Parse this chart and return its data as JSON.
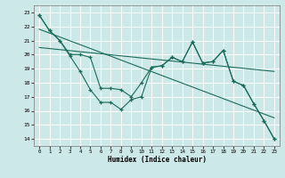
{
  "xlabel": "Humidex (Indice chaleur)",
  "bg_color": "#cce8e8",
  "grid_color": "#ffffff",
  "line_color": "#1a6b5a",
  "xlim": [
    -0.5,
    23.5
  ],
  "ylim": [
    13.5,
    23.5
  ],
  "xticks": [
    0,
    1,
    2,
    3,
    4,
    5,
    6,
    7,
    8,
    9,
    10,
    11,
    12,
    13,
    14,
    15,
    16,
    17,
    18,
    19,
    20,
    21,
    22,
    23
  ],
  "yticks": [
    14,
    15,
    16,
    17,
    18,
    19,
    20,
    21,
    22,
    23
  ],
  "series1_x": [
    0,
    1,
    2,
    3,
    4,
    5,
    6,
    7,
    8,
    9,
    10,
    11,
    12,
    13,
    14,
    15,
    16,
    17,
    18,
    19,
    20,
    21,
    22,
    23
  ],
  "series1_y": [
    22.8,
    21.7,
    21.0,
    19.9,
    18.8,
    17.5,
    16.6,
    16.6,
    16.1,
    16.8,
    17.0,
    19.1,
    19.2,
    19.8,
    19.5,
    20.9,
    19.4,
    19.5,
    20.3,
    18.1,
    17.8,
    16.5,
    15.3,
    14.0
  ],
  "series2_x": [
    0,
    1,
    2,
    3,
    4,
    5,
    6,
    7,
    8,
    9,
    10,
    11,
    12,
    13,
    14,
    15,
    16,
    17,
    18,
    19,
    20,
    21,
    22,
    23
  ],
  "series2_y": [
    22.8,
    21.7,
    21.0,
    20.0,
    20.0,
    19.8,
    17.6,
    17.6,
    17.5,
    17.0,
    18.0,
    19.1,
    19.2,
    19.8,
    19.5,
    20.9,
    19.4,
    19.5,
    20.3,
    18.1,
    17.8,
    16.5,
    15.3,
    14.0
  ],
  "trend1_x": [
    0,
    23
  ],
  "trend1_y": [
    21.8,
    15.5
  ],
  "trend2_x": [
    0,
    23
  ],
  "trend2_y": [
    20.5,
    18.8
  ]
}
